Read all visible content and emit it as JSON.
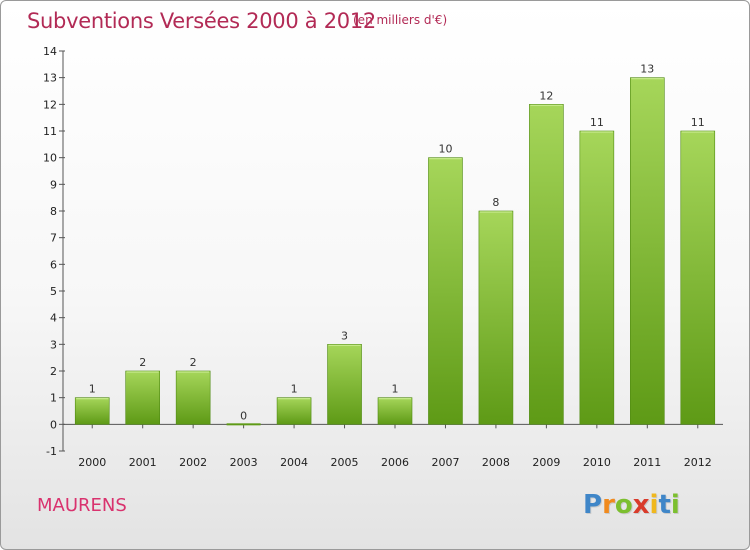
{
  "header": {
    "title": "Subventions Versées 2000 à 2012",
    "unit": "(en milliers d'€)"
  },
  "footer": {
    "commune": "MAURENS",
    "logo_letters": [
      "P",
      "r",
      "o",
      "x",
      "i",
      "t",
      "i"
    ],
    "logo_colors": [
      "#3f86c8",
      "#f08a1e",
      "#7cbf2f",
      "#d93b2b",
      "#f0b81e",
      "#3f86c8",
      "#7cbf2f"
    ]
  },
  "chart_data": {
    "type": "bar",
    "categories": [
      "2000",
      "2001",
      "2002",
      "2003",
      "2004",
      "2005",
      "2006",
      "2007",
      "2008",
      "2009",
      "2010",
      "2011",
      "2012"
    ],
    "values": [
      1,
      2,
      2,
      0,
      1,
      3,
      1,
      10,
      8,
      12,
      11,
      13,
      11
    ],
    "data_labels": [
      "1",
      "2",
      "2",
      "0",
      "1",
      "3",
      "1",
      "10",
      "8",
      "12",
      "11",
      "13",
      "11"
    ],
    "y_ticks": [
      -1,
      0,
      1,
      2,
      3,
      4,
      5,
      6,
      7,
      8,
      9,
      10,
      11,
      12,
      13,
      14
    ],
    "ylim": [
      -1,
      14
    ],
    "bar_color_top": "#a6d65a",
    "bar_color_bottom": "#5e9a16",
    "grid": false
  }
}
